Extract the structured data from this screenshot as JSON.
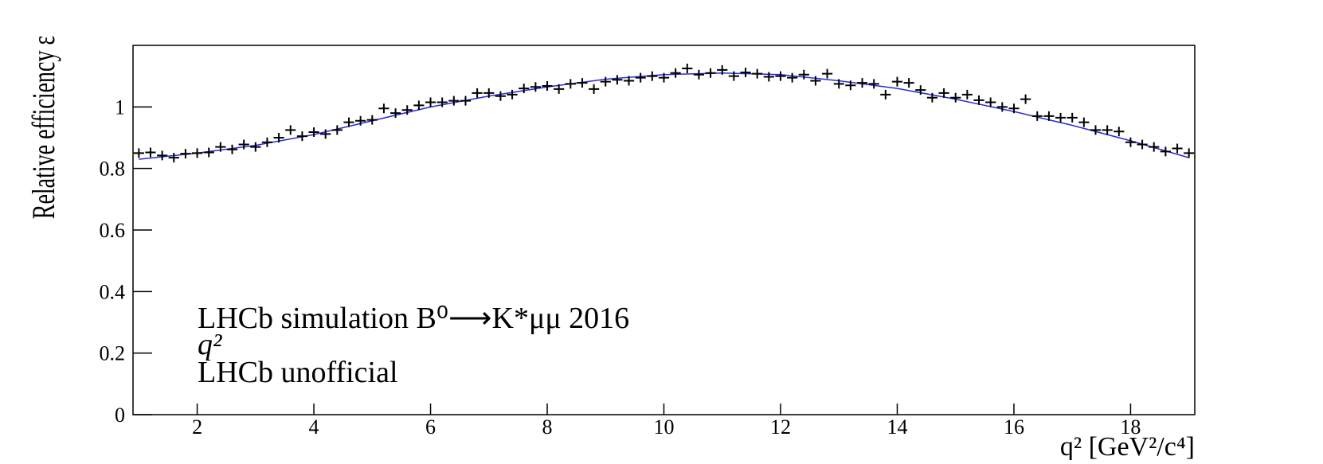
{
  "chart_data": {
    "type": "scatter",
    "y_label": "Relative efficiency ε",
    "x_label": "q² [GeV²/c⁴]",
    "annotations": [
      "LHCb simulation B⁰⟶K*μμ 2016",
      "q²",
      "LHCb unofficial"
    ],
    "xlim": [
      0.9,
      19.1
    ],
    "ylim": [
      0,
      1.2
    ],
    "xticks": [
      2,
      4,
      6,
      8,
      10,
      12,
      14,
      16,
      18
    ],
    "yticks": [
      0,
      0.2,
      0.4,
      0.6,
      0.8,
      1
    ],
    "points": {
      "color": "#000000",
      "x": [
        1.0,
        1.2,
        1.4,
        1.6,
        1.8,
        2.0,
        2.2,
        2.4,
        2.6,
        2.8,
        3.0,
        3.2,
        3.4,
        3.6,
        3.8,
        4.0,
        4.2,
        4.4,
        4.6,
        4.8,
        5.0,
        5.2,
        5.4,
        5.6,
        5.8,
        6.0,
        6.2,
        6.4,
        6.6,
        6.8,
        7.0,
        7.2,
        7.4,
        7.6,
        7.8,
        8.0,
        8.2,
        8.4,
        8.6,
        8.8,
        9.0,
        9.2,
        9.4,
        9.6,
        9.8,
        10.0,
        10.2,
        10.4,
        10.6,
        10.8,
        11.0,
        11.2,
        11.4,
        11.6,
        11.8,
        12.0,
        12.2,
        12.4,
        12.6,
        12.8,
        13.0,
        13.2,
        13.4,
        13.6,
        13.8,
        14.0,
        14.2,
        14.4,
        14.6,
        14.8,
        15.0,
        15.2,
        15.4,
        15.6,
        15.8,
        16.0,
        16.2,
        16.4,
        16.6,
        16.8,
        17.0,
        17.2,
        17.4,
        17.6,
        17.8,
        18.0,
        18.2,
        18.4,
        18.6,
        18.8,
        19.0
      ],
      "values": [
        0.85,
        0.852,
        0.842,
        0.835,
        0.848,
        0.85,
        0.852,
        0.87,
        0.862,
        0.878,
        0.87,
        0.885,
        0.9,
        0.925,
        0.905,
        0.918,
        0.912,
        0.925,
        0.95,
        0.955,
        0.958,
        0.995,
        0.98,
        0.99,
        1.005,
        1.015,
        1.015,
        1.02,
        1.02,
        1.045,
        1.045,
        1.035,
        1.04,
        1.06,
        1.065,
        1.068,
        1.058,
        1.075,
        1.078,
        1.058,
        1.082,
        1.088,
        1.085,
        1.095,
        1.1,
        1.095,
        1.11,
        1.125,
        1.105,
        1.11,
        1.12,
        1.1,
        1.112,
        1.108,
        1.098,
        1.1,
        1.095,
        1.105,
        1.085,
        1.108,
        1.075,
        1.07,
        1.078,
        1.075,
        1.04,
        1.082,
        1.078,
        1.055,
        1.03,
        1.045,
        1.03,
        1.04,
        1.022,
        1.015,
        1.0,
        0.995,
        1.025,
        0.97,
        0.97,
        0.965,
        0.965,
        0.95,
        0.925,
        0.925,
        0.92,
        0.885,
        0.878,
        0.87,
        0.855,
        0.865,
        0.85
      ]
    },
    "fit": {
      "color": "#2b2bd6",
      "x": [
        1,
        2,
        3,
        4,
        5,
        6,
        7,
        8,
        9,
        10,
        11,
        12,
        13,
        14,
        15,
        16,
        17,
        18,
        19
      ],
      "values": [
        0.83,
        0.85,
        0.875,
        0.91,
        0.955,
        1.0,
        1.035,
        1.065,
        1.09,
        1.105,
        1.11,
        1.105,
        1.085,
        1.06,
        1.025,
        0.985,
        0.94,
        0.89,
        0.835
      ]
    }
  }
}
